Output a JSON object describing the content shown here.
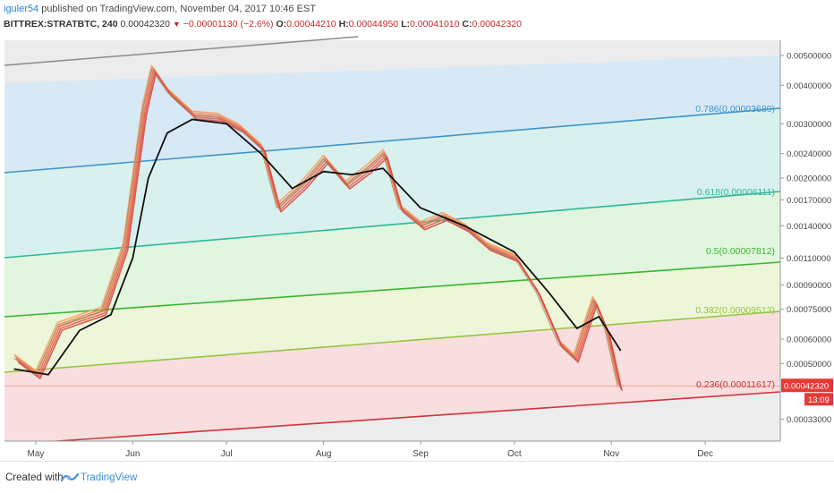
{
  "header": {
    "user": "iguler54",
    "published": " published on TradingView.com, November 04, 2017 10:46 EST",
    "symbol": "BITTREX:STRATBTC, 240",
    "last": "0.00042320",
    "arrow": "▼",
    "change": "−0.00001130 (−2.6%)",
    "o_label": "O:",
    "o": "0.00044210",
    "h_label": "H:",
    "h": "0.00044950",
    "l_label": "L:",
    "l": "0.00041010",
    "c_label": "C:",
    "c": "0.00042320"
  },
  "footer": {
    "created": "Created with",
    "brand": "TradingView"
  },
  "chart_data": {
    "type": "line",
    "scale": "log",
    "yticks": [
      "0.00500000",
      "0.00400000",
      "0.00300000",
      "0.00240000",
      "0.00200000",
      "0.00170000",
      "0.00140000",
      "0.00110000",
      "0.00090000",
      "0.00075000",
      "0.00060000",
      "0.00050000",
      "0.00033000"
    ],
    "xticks": [
      "May",
      "Jun",
      "Jul",
      "Aug",
      "Sep",
      "Oct",
      "Nov",
      "Dec"
    ],
    "fib_levels": [
      {
        "label": "0.786(0.00003689)",
        "color": "#3d95c9"
      },
      {
        "label": "0.618(0.00006111)",
        "color": "#29b89a"
      },
      {
        "label": "0.5(0.00007812)",
        "color": "#36b82d"
      },
      {
        "label": "0.382(0.00009513)",
        "color": "#96c43f"
      },
      {
        "label": "0.236(0.00011617)",
        "color": "#d0323a"
      }
    ],
    "band_colors": [
      "#d8e9f6",
      "#d9f1ee",
      "#e2f5df",
      "#eef6da",
      "#f8dede"
    ],
    "last_price_label": "0.00042320",
    "countdown": "13:09",
    "series": [
      {
        "date": "2017-04-24",
        "close": 0.00052
      },
      {
        "date": "2017-05-01",
        "close": 0.00046
      },
      {
        "date": "2017-05-08",
        "close": 0.00066
      },
      {
        "date": "2017-05-15",
        "close": 0.0007
      },
      {
        "date": "2017-05-22",
        "close": 0.00074
      },
      {
        "date": "2017-05-29",
        "close": 0.0012
      },
      {
        "date": "2017-06-01",
        "close": 0.002
      },
      {
        "date": "2017-06-04",
        "close": 0.0033
      },
      {
        "date": "2017-06-07",
        "close": 0.0045
      },
      {
        "date": "2017-06-12",
        "close": 0.0038
      },
      {
        "date": "2017-06-20",
        "close": 0.0032
      },
      {
        "date": "2017-06-28",
        "close": 0.00315
      },
      {
        "date": "2017-07-05",
        "close": 0.0029
      },
      {
        "date": "2017-07-12",
        "close": 0.0025
      },
      {
        "date": "2017-07-17",
        "close": 0.0016
      },
      {
        "date": "2017-07-25",
        "close": 0.0019
      },
      {
        "date": "2017-08-01",
        "close": 0.0023
      },
      {
        "date": "2017-08-08",
        "close": 0.0019
      },
      {
        "date": "2017-08-15",
        "close": 0.00215
      },
      {
        "date": "2017-08-20",
        "close": 0.0024
      },
      {
        "date": "2017-08-25",
        "close": 0.0016
      },
      {
        "date": "2017-09-01",
        "close": 0.0014
      },
      {
        "date": "2017-09-08",
        "close": 0.0015
      },
      {
        "date": "2017-09-15",
        "close": 0.00138
      },
      {
        "date": "2017-09-22",
        "close": 0.0012
      },
      {
        "date": "2017-10-01",
        "close": 0.0011
      },
      {
        "date": "2017-10-08",
        "close": 0.00085
      },
      {
        "date": "2017-10-15",
        "close": 0.00058
      },
      {
        "date": "2017-10-20",
        "close": 0.00052
      },
      {
        "date": "2017-10-26",
        "close": 0.0008
      },
      {
        "date": "2017-10-30",
        "close": 0.00064
      },
      {
        "date": "2017-11-03",
        "close": 0.00042
      }
    ],
    "ema": [
      {
        "date": "2017-04-24",
        "value": 0.00048
      },
      {
        "date": "2017-05-05",
        "value": 0.00046
      },
      {
        "date": "2017-05-15",
        "value": 0.00064
      },
      {
        "date": "2017-05-25",
        "value": 0.00072
      },
      {
        "date": "2017-06-01",
        "value": 0.0011
      },
      {
        "date": "2017-06-06",
        "value": 0.002
      },
      {
        "date": "2017-06-12",
        "value": 0.0028
      },
      {
        "date": "2017-06-20",
        "value": 0.0031
      },
      {
        "date": "2017-07-01",
        "value": 0.003
      },
      {
        "date": "2017-07-12",
        "value": 0.0024
      },
      {
        "date": "2017-07-22",
        "value": 0.00185
      },
      {
        "date": "2017-08-01",
        "value": 0.0021
      },
      {
        "date": "2017-08-10",
        "value": 0.00205
      },
      {
        "date": "2017-08-20",
        "value": 0.00215
      },
      {
        "date": "2017-09-01",
        "value": 0.0016
      },
      {
        "date": "2017-09-15",
        "value": 0.0014
      },
      {
        "date": "2017-10-01",
        "value": 0.00115
      },
      {
        "date": "2017-10-12",
        "value": 0.00085
      },
      {
        "date": "2017-10-21",
        "value": 0.00065
      },
      {
        "date": "2017-10-28",
        "value": 0.00071
      },
      {
        "date": "2017-11-04",
        "value": 0.00055
      }
    ]
  }
}
